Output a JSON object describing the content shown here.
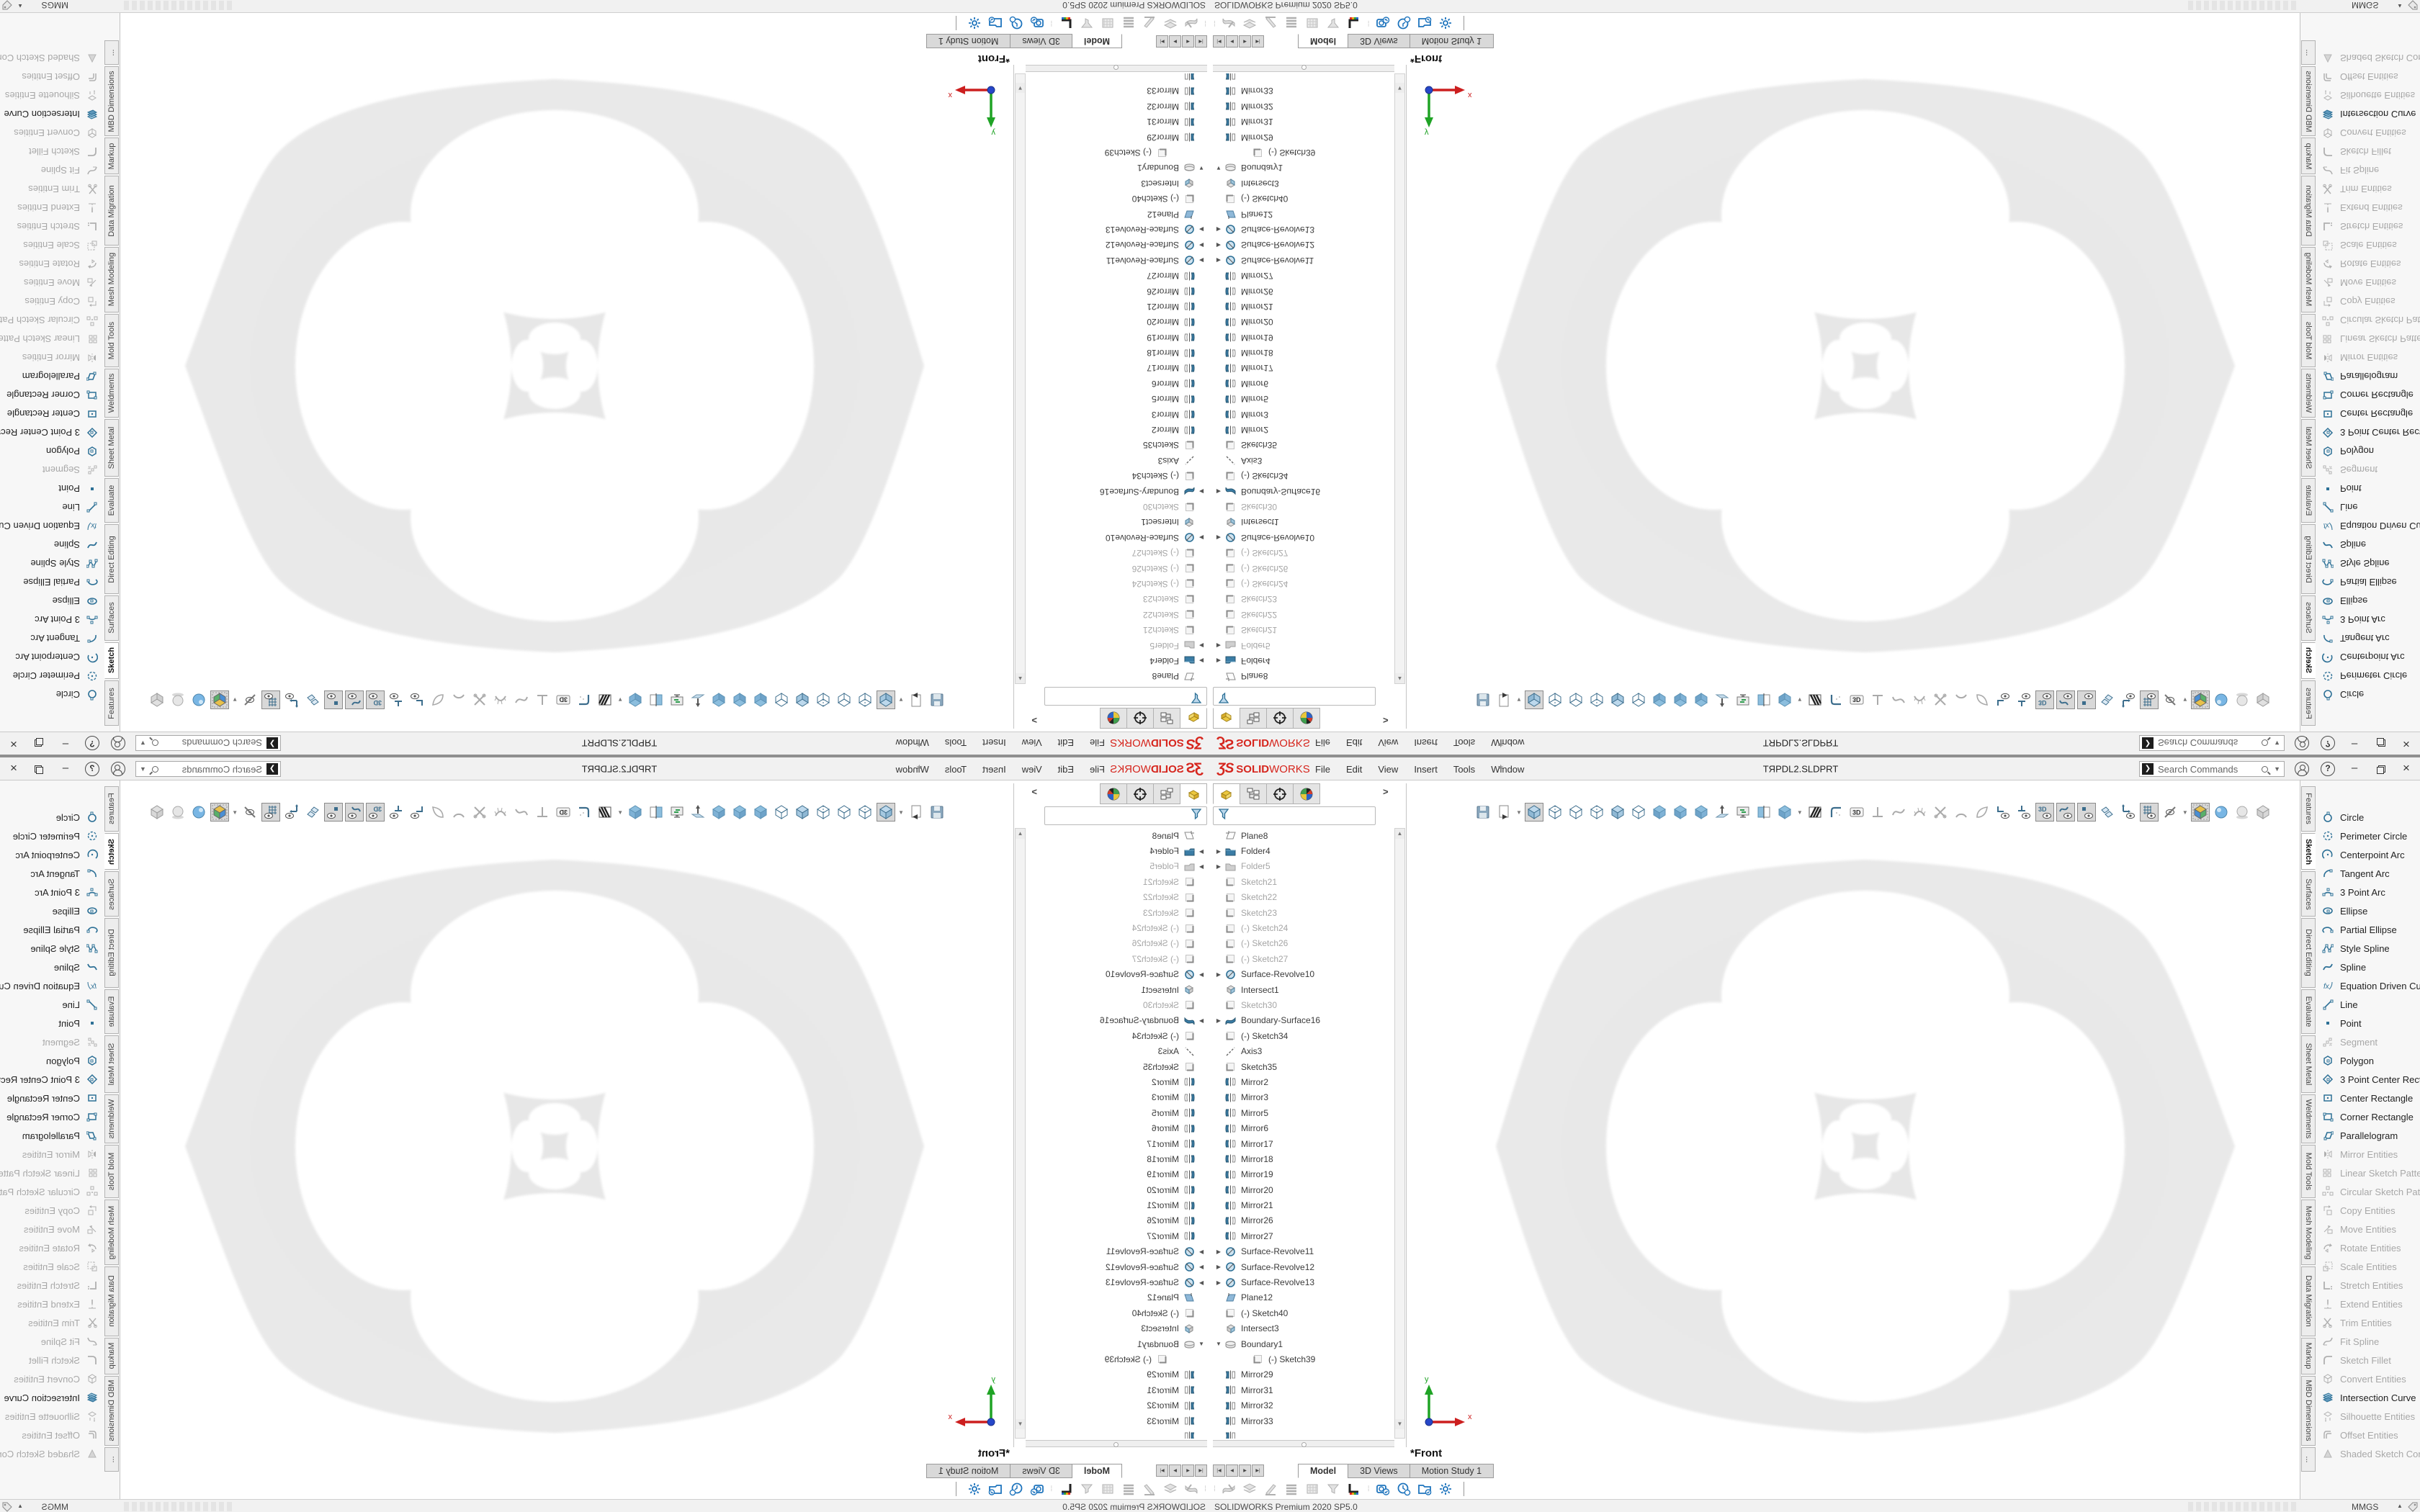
{
  "window": {
    "title": "TЯPDL2.SLDPRT",
    "brand": {
      "glyph": "ƷS",
      "bold": "SOLID",
      "light": "WORKS"
    },
    "menu": [
      "File",
      "Edit",
      "View",
      "Insert",
      "Tools",
      "Window"
    ],
    "pin_icon": "✶",
    "search": {
      "placeholder": "Search Commands"
    },
    "window_controls": [
      "minimize",
      "restore",
      "close"
    ]
  },
  "feature_manager": {
    "tabs": [
      "featuremanager-tree-tab",
      "property-manager-tab",
      "dimxpert-manager-tab",
      "display-manager-tab"
    ],
    "overflow_chevron": ">",
    "filter_icon": "filter-funnel-icon",
    "tree": [
      {
        "label": "Plane8",
        "icon": "plane",
        "arrow": "",
        "gray": false,
        "indent": 0
      },
      {
        "label": "Folder4",
        "icon": "folder",
        "arrow": "r",
        "gray": false,
        "indent": 0
      },
      {
        "label": "Folder5",
        "icon": "folder-gray",
        "arrow": "r",
        "gray": true,
        "indent": 0
      },
      {
        "label": "Sketch21",
        "icon": "sketch",
        "arrow": "",
        "gray": true,
        "indent": 0
      },
      {
        "label": "Sketch22",
        "icon": "sketch",
        "arrow": "",
        "gray": true,
        "indent": 0
      },
      {
        "label": "Sketch23",
        "icon": "sketch",
        "arrow": "",
        "gray": true,
        "indent": 0
      },
      {
        "label": "(-) Sketch24",
        "icon": "sketch",
        "arrow": "",
        "gray": true,
        "indent": 0
      },
      {
        "label": "(-) Sketch26",
        "icon": "sketch",
        "arrow": "",
        "gray": true,
        "indent": 0
      },
      {
        "label": "(-) Sketch27",
        "icon": "sketch",
        "arrow": "",
        "gray": true,
        "indent": 0
      },
      {
        "label": "Surface-Revolve10",
        "icon": "revolve",
        "arrow": "r",
        "gray": false,
        "indent": 0
      },
      {
        "label": "Intersect1",
        "icon": "intersect",
        "arrow": "",
        "gray": false,
        "indent": 0
      },
      {
        "label": "Sketch30",
        "icon": "sketch",
        "arrow": "",
        "gray": true,
        "indent": 0
      },
      {
        "label": "Boundary-Surface16",
        "icon": "bsurf",
        "arrow": "r",
        "gray": false,
        "indent": 0
      },
      {
        "label": "(-) Sketch34",
        "icon": "sketch",
        "arrow": "",
        "gray": false,
        "indent": 0
      },
      {
        "label": "Axis3",
        "icon": "axis",
        "arrow": "",
        "gray": false,
        "indent": 0
      },
      {
        "label": "Sketch35",
        "icon": "sketch",
        "arrow": "",
        "gray": false,
        "indent": 0
      },
      {
        "label": "Mirror2",
        "icon": "mirrorA",
        "arrow": "",
        "gray": false,
        "indent": 0
      },
      {
        "label": "Mirror3",
        "icon": "mirrorA",
        "arrow": "",
        "gray": false,
        "indent": 0
      },
      {
        "label": "Mirror5",
        "icon": "mirrorA",
        "arrow": "",
        "gray": false,
        "indent": 0
      },
      {
        "label": "Mirror6",
        "icon": "mirrorA",
        "arrow": "",
        "gray": false,
        "indent": 0
      },
      {
        "label": "Mirror17",
        "icon": "mirrorA",
        "arrow": "",
        "gray": false,
        "indent": 0
      },
      {
        "label": "Mirror18",
        "icon": "mirrorA",
        "arrow": "",
        "gray": false,
        "indent": 0
      },
      {
        "label": "Mirror19",
        "icon": "mirrorA",
        "arrow": "",
        "gray": false,
        "indent": 0
      },
      {
        "label": "Mirror20",
        "icon": "mirrorA",
        "arrow": "",
        "gray": false,
        "indent": 0
      },
      {
        "label": "Mirror21",
        "icon": "mirrorA",
        "arrow": "",
        "gray": false,
        "indent": 0
      },
      {
        "label": "Mirror26",
        "icon": "mirrorA",
        "arrow": "",
        "gray": false,
        "indent": 0
      },
      {
        "label": "Mirror27",
        "icon": "mirrorA",
        "arrow": "",
        "gray": false,
        "indent": 0
      },
      {
        "label": "Surface-Revolve11",
        "icon": "revolve",
        "arrow": "r",
        "gray": false,
        "indent": 0
      },
      {
        "label": "Surface-Revolve12",
        "icon": "revolve",
        "arrow": "r",
        "gray": false,
        "indent": 0
      },
      {
        "label": "Surface-Revolve13",
        "icon": "revolve",
        "arrow": "r",
        "gray": false,
        "indent": 0
      },
      {
        "label": "Plane12",
        "icon": "plane-blue",
        "arrow": "",
        "gray": false,
        "indent": 0
      },
      {
        "label": "(-) Sketch40",
        "icon": "sketch",
        "arrow": "",
        "gray": false,
        "indent": 0
      },
      {
        "label": "Intersect3",
        "icon": "intersect",
        "arrow": "",
        "gray": false,
        "indent": 0
      },
      {
        "label": "Boundary1",
        "icon": "boundary",
        "arrow": "d",
        "gray": false,
        "indent": 0
      },
      {
        "label": "(-) Sketch39",
        "icon": "sketch",
        "arrow": "",
        "gray": false,
        "indent": 1
      },
      {
        "label": "Mirror29",
        "icon": "mirrorB",
        "arrow": "",
        "gray": false,
        "indent": 0
      },
      {
        "label": "Mirror31",
        "icon": "mirrorB",
        "arrow": "",
        "gray": false,
        "indent": 0
      },
      {
        "label": "Mirror32",
        "icon": "mirrorB",
        "arrow": "",
        "gray": false,
        "indent": 0
      },
      {
        "label": "Mirror33",
        "icon": "mirrorB",
        "arrow": "",
        "gray": false,
        "indent": 0
      },
      {
        "label": "",
        "icon": "mirrorB",
        "arrow": "",
        "gray": false,
        "indent": 0
      }
    ]
  },
  "toolbar": {
    "buttons": [
      {
        "name": "save",
        "kind": "floppy"
      },
      {
        "name": "play-macro",
        "kind": "docplay",
        "caret": true
      },
      {
        "name": "display-shaded-with-edges",
        "kind": "cubeA",
        "pressed": true
      },
      {
        "name": "display-hidden-lines-visible",
        "kind": "cubeB"
      },
      {
        "name": "display-wireframe",
        "kind": "cubeC"
      },
      {
        "name": "display-hidden-lines-removed",
        "kind": "cubeB"
      },
      {
        "name": "display-shaded-face",
        "kind": "cubeA"
      },
      {
        "name": "display-draft-quality",
        "kind": "cubeC"
      },
      {
        "name": "view-shaded-1",
        "kind": "cubeS"
      },
      {
        "name": "view-shaded-2",
        "kind": "cubeS"
      },
      {
        "name": "view-shaded-3",
        "kind": "cubeS"
      },
      {
        "name": "section-lift",
        "kind": "lift"
      },
      {
        "name": "refresh-view",
        "kind": "monitor"
      },
      {
        "name": "section-view",
        "kind": "section"
      },
      {
        "name": "apply-texture",
        "kind": "cubeS",
        "caret": true
      },
      {
        "name": "zebra-stripes",
        "kind": "zebra"
      },
      {
        "name": "surface-check",
        "kind": "cornerL"
      },
      {
        "name": "3d-drawing-view",
        "kind": "badge3d"
      },
      {
        "name": "normal-to",
        "kind": "perp",
        "gray": true
      },
      {
        "name": "view-curvature",
        "kind": "squig",
        "gray": true
      },
      {
        "name": "curvature-combs",
        "kind": "comb",
        "gray": true
      },
      {
        "name": "trim-preview",
        "kind": "xcut",
        "gray": true
      },
      {
        "name": "arc-preview",
        "kind": "arch",
        "gray": true
      },
      {
        "name": "slice-preview",
        "kind": "slice",
        "gray": true
      },
      {
        "name": "hide-show-sketches",
        "kind": "eyeSketch"
      },
      {
        "name": "hide-show-sketch-planes",
        "kind": "eyePerp"
      },
      {
        "name": "hide-show-3d-sketch",
        "kind": "eye3d",
        "pressed": true
      },
      {
        "name": "hide-show-curves",
        "kind": "eyeCurve",
        "pressed": true
      },
      {
        "name": "hide-show-points",
        "kind": "eyePoint",
        "pressed": true
      },
      {
        "name": "hide-show-planes",
        "kind": "planes"
      },
      {
        "name": "hide-show-axes",
        "kind": "eyeAxes"
      },
      {
        "name": "hide-show-grid",
        "kind": "eyeGrid",
        "pressed": true
      },
      {
        "name": "hide-all-types",
        "kind": "eyeSlash",
        "caret": true
      },
      {
        "name": "realview-graphics",
        "kind": "realview",
        "pressed": true
      },
      {
        "name": "apply-scene",
        "kind": "sphereB"
      },
      {
        "name": "shadows-in-shaded-mode",
        "kind": "sphereG"
      },
      {
        "name": "ambient-occlusion",
        "kind": "cubeG"
      }
    ]
  },
  "command_manager": {
    "tabs": [
      {
        "label": "Features",
        "active": false
      },
      {
        "label": "Sketch",
        "active": true
      },
      {
        "label": "Surfaces",
        "active": false
      },
      {
        "label": "Direct Editing",
        "active": false
      },
      {
        "label": "Evaluate",
        "active": false
      },
      {
        "label": "Sheet Metal",
        "active": false
      },
      {
        "label": "Weldments",
        "active": false
      },
      {
        "label": "Mold Tools",
        "active": false
      },
      {
        "label": "Mesh Modeling",
        "active": false
      },
      {
        "label": "Data Migration",
        "active": false
      },
      {
        "label": "Markup",
        "active": false
      },
      {
        "label": "MBD Dimensions",
        "active": false
      },
      {
        "label": "...",
        "active": false
      }
    ],
    "items": [
      {
        "label": "Circle",
        "icon": "circle",
        "enabled": true
      },
      {
        "label": "Perimeter Circle",
        "icon": "pcircle",
        "enabled": true
      },
      {
        "label": "Centerpoint Arc",
        "icon": "carc",
        "enabled": true
      },
      {
        "label": "Tangent Arc",
        "icon": "tarc",
        "enabled": true
      },
      {
        "label": "3 Point Arc",
        "icon": "arc3",
        "enabled": true
      },
      {
        "label": "Ellipse",
        "icon": "ellipse",
        "enabled": true
      },
      {
        "label": "Partial Ellipse",
        "icon": "pellipse",
        "enabled": true
      },
      {
        "label": "Style Spline",
        "icon": "stspline",
        "enabled": true
      },
      {
        "label": "Spline",
        "icon": "spline",
        "enabled": true
      },
      {
        "label": "Equation Driven Curve",
        "icon": "fx",
        "enabled": true
      },
      {
        "label": "Line",
        "icon": "line",
        "enabled": true
      },
      {
        "label": "Point",
        "icon": "point",
        "enabled": true
      },
      {
        "label": "Segment",
        "icon": "segment",
        "enabled": false
      },
      {
        "label": "Polygon",
        "icon": "polygon",
        "enabled": true
      },
      {
        "label": "3 Point Center Recta...",
        "icon": "rect3",
        "enabled": true
      },
      {
        "label": "Center Rectangle",
        "icon": "rectc",
        "enabled": true
      },
      {
        "label": "Corner Rectangle",
        "icon": "rectk",
        "enabled": true
      },
      {
        "label": "Parallelogram",
        "icon": "para",
        "enabled": true
      },
      {
        "label": "Mirror Entities",
        "icon": "mirror",
        "enabled": false
      },
      {
        "label": "Linear Sketch Pattern",
        "icon": "linpat",
        "enabled": false
      },
      {
        "label": "Circular Sketch Pattern",
        "icon": "cirpat",
        "enabled": false
      },
      {
        "label": "Copy Entities",
        "icon": "copy",
        "enabled": false
      },
      {
        "label": "Move Entities",
        "icon": "move",
        "enabled": false
      },
      {
        "label": "Rotate Entities",
        "icon": "rot",
        "enabled": false
      },
      {
        "label": "Scale Entities",
        "icon": "scale",
        "enabled": false
      },
      {
        "label": "Stretch Entities",
        "icon": "stretch",
        "enabled": false
      },
      {
        "label": "Extend Entities",
        "icon": "extend",
        "enabled": false
      },
      {
        "label": "Trim Entities",
        "icon": "trim",
        "enabled": false
      },
      {
        "label": "Fit Spline",
        "icon": "fitspl",
        "enabled": false
      },
      {
        "label": "Sketch Fillet",
        "icon": "fillet",
        "enabled": false
      },
      {
        "label": "Convert Entities",
        "icon": "convert",
        "enabled": false
      },
      {
        "label": "Intersection Curve",
        "icon": "icurve",
        "enabled": true
      },
      {
        "label": "Silhouette Entities",
        "icon": "silh",
        "enabled": false
      },
      {
        "label": "Offset Entities",
        "icon": "offset",
        "enabled": false
      },
      {
        "label": "Shaded Sketch Cont...",
        "icon": "shaded",
        "enabled": false
      }
    ]
  },
  "graphics": {
    "view_label": "*Front",
    "triad": {
      "x_label": "x",
      "y_label": "y"
    }
  },
  "bottom": {
    "nav_buttons": [
      "|◀",
      "◀",
      "▶",
      "▶|"
    ],
    "doc_tabs": [
      {
        "label": "Model",
        "active": true
      },
      {
        "label": "3D Views",
        "active": false
      },
      {
        "label": "Motion Study 1",
        "active": false
      }
    ],
    "toolbar_gray": [
      "markup-surface",
      "markup-stack",
      "markup-pen",
      "markup-lines",
      "markup-grid",
      "markup-filter",
      "appearance-strip"
    ],
    "toolbar_blue": [
      "camera-check",
      "schedule-clock",
      "folder-check",
      "settings-gear"
    ],
    "status": {
      "left": "SOLIDWORKS Premium 2020 SP5.0",
      "units": "MMGS"
    }
  }
}
